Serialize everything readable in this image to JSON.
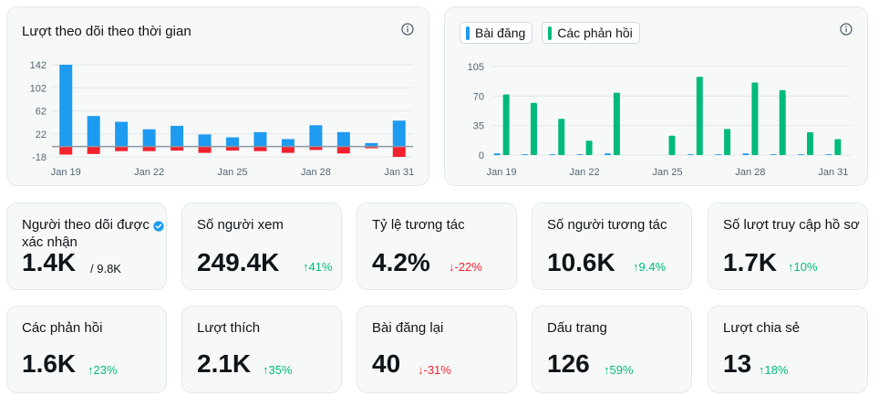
{
  "followers_chart": {
    "title": "Lượt theo dõi theo thời gian",
    "info_icon": "info-icon",
    "colors": {
      "gain": "#1d9bf0",
      "loss": "#f4212e",
      "baseline": "#8b98a5"
    },
    "chart_data": {
      "type": "bar",
      "y_ticks": [
        "142",
        "102",
        "62",
        "22",
        "-18"
      ],
      "y_values": [
        142,
        102,
        62,
        22,
        -18
      ],
      "x_tick_labels": [
        "Jan 19",
        "Jan 22",
        "Jan 25",
        "Jan 28",
        "Jan 31"
      ],
      "x_tick_index": [
        0,
        3,
        6,
        9,
        12
      ],
      "ylim": [
        -18,
        142
      ],
      "series": [
        {
          "values": [
            142,
            53,
            43,
            30,
            36,
            21,
            16,
            25,
            13,
            37,
            25,
            6,
            45
          ]
        },
        {
          "values": [
            -14,
            -13,
            -8,
            -8,
            -7,
            -11,
            -7,
            -8,
            -11,
            -6,
            -12,
            -3,
            -18
          ]
        }
      ]
    }
  },
  "posts_chart": {
    "legend": [
      {
        "label": "Bài đăng",
        "color": "#1d9bf0"
      },
      {
        "label": "Các phản hồi",
        "color": "#00ba7c"
      }
    ],
    "info_icon": "info-icon",
    "chart_data": {
      "type": "bar",
      "y_ticks": [
        "105",
        "70",
        "35",
        "0"
      ],
      "y_values": [
        105,
        70,
        35,
        0
      ],
      "x_tick_labels": [
        "Jan 19",
        "Jan 22",
        "Jan 25",
        "Jan 28",
        "Jan 31"
      ],
      "x_tick_index": [
        0,
        3,
        6,
        9,
        12
      ],
      "ylim": [
        0,
        105
      ],
      "series": [
        {
          "name": "Bài đăng",
          "values": [
            2,
            1,
            1,
            1,
            2,
            0,
            0,
            1,
            1,
            2,
            1,
            1,
            1
          ]
        },
        {
          "name": "Các phản hồi",
          "values": [
            72,
            62,
            43,
            17,
            74,
            0,
            23,
            93,
            31,
            86,
            77,
            27,
            19
          ]
        }
      ]
    }
  },
  "stats": [
    {
      "label": "Người theo dõi được xác nhận",
      "value": "1.4K",
      "total": "/ 9.8K",
      "verified_icon": "verified-badge-icon"
    },
    {
      "label": "Số người xem",
      "value": "249.4K",
      "change": "↑41%",
      "direction": "up"
    },
    {
      "label": "Tỷ lệ tương tác",
      "value": "4.2%",
      "change": "↓-22%",
      "direction": "down"
    },
    {
      "label": "Số người tương tác",
      "value": "10.6K",
      "change": "↑9.4%",
      "direction": "up"
    },
    {
      "label": "Số lượt truy cập hồ sơ",
      "value": "1.7K",
      "change": "↑10%",
      "direction": "up"
    },
    {
      "label": "Các phản hồi",
      "value": "1.6K",
      "change": "↑23%",
      "direction": "up"
    },
    {
      "label": "Lượt thích",
      "value": "2.1K",
      "change": "↑35%",
      "direction": "up"
    },
    {
      "label": "Bài đăng lại",
      "value": "40",
      "change": "↓-31%",
      "direction": "down"
    },
    {
      "label": "Dấu trang",
      "value": "126",
      "change": "↑59%",
      "direction": "up"
    },
    {
      "label": "Lượt chia sẻ",
      "value": "13",
      "change": "↑18%",
      "direction": "up"
    }
  ]
}
